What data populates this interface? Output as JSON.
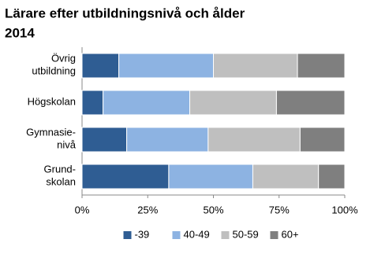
{
  "chart_data": {
    "type": "stacked-barh",
    "title": [
      "Lärare efter utbildningsnivå och ålder",
      "2014"
    ],
    "categories": [
      [
        "Övrig",
        "utbildning"
      ],
      [
        "Högskolan"
      ],
      [
        "Gymnasie-",
        "nivå"
      ],
      [
        "Grund-",
        "skolan"
      ]
    ],
    "series": [
      {
        "name": "-39",
        "color": "#2f5d93",
        "values": [
          14,
          8,
          17,
          33
        ]
      },
      {
        "name": "40-49",
        "color": "#8db3e2",
        "values": [
          36,
          33,
          31,
          32
        ]
      },
      {
        "name": "50-59",
        "color": "#bfbfbf",
        "values": [
          32,
          33,
          35,
          25
        ]
      },
      {
        "name": "60+",
        "color": "#7f7f7f",
        "values": [
          18,
          26,
          17,
          10
        ]
      }
    ],
    "xlim": [
      0,
      100
    ],
    "xticks": [
      {
        "value": 0,
        "label": "0%"
      },
      {
        "value": 25,
        "label": "25%"
      },
      {
        "value": 50,
        "label": "50%"
      },
      {
        "value": 75,
        "label": "75%"
      },
      {
        "value": 100,
        "label": "100%"
      }
    ],
    "legend": "bottom"
  }
}
